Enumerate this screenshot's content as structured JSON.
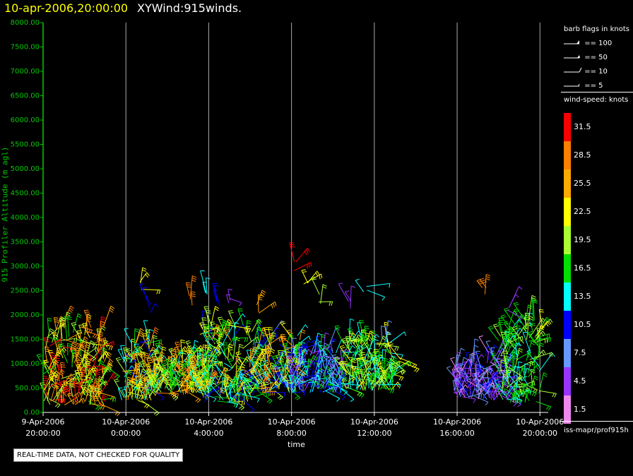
{
  "header": {
    "datetime": "10-apr-2006,20:00:00",
    "name": "XYWind:915winds."
  },
  "chart_data": {
    "type": "scatter",
    "title": "XYWind:915winds.",
    "xlabel": "time",
    "ylabel": "915 Profiler Altitude (m agl)",
    "x_unit": "hours since 9-Apr-2006 20:00",
    "xlim": [
      0,
      24.4
    ],
    "ylim": [
      0,
      8000
    ],
    "grid": true,
    "yticks": [
      {
        "v": 0,
        "label": "0.00"
      },
      {
        "v": 500,
        "label": "500.00"
      },
      {
        "v": 1000,
        "label": "1000.00"
      },
      {
        "v": 1500,
        "label": "1500.00"
      },
      {
        "v": 2000,
        "label": "2000.00"
      },
      {
        "v": 2500,
        "label": "2500.00"
      },
      {
        "v": 3000,
        "label": "3000.00"
      },
      {
        "v": 3500,
        "label": "3500.00"
      },
      {
        "v": 4000,
        "label": "4000.00"
      },
      {
        "v": 4500,
        "label": "4500.00"
      },
      {
        "v": 5000,
        "label": "5000.00"
      },
      {
        "v": 5500,
        "label": "5500.00"
      },
      {
        "v": 6000,
        "label": "6000.00"
      },
      {
        "v": 6500,
        "label": "6500.00"
      },
      {
        "v": 7000,
        "label": "7000.00"
      },
      {
        "v": 7500,
        "label": "7500.00"
      },
      {
        "v": 8000,
        "label": "8000.00"
      }
    ],
    "xticks": [
      {
        "v": 0,
        "line1": "9-Apr-2006",
        "line2": "20:00:00"
      },
      {
        "v": 4,
        "line1": "10-Apr-2006",
        "line2": "0:00:00"
      },
      {
        "v": 8,
        "line1": "10-Apr-2006",
        "line2": "4:00:00"
      },
      {
        "v": 12,
        "line1": "10-Apr-2006",
        "line2": "8:00:00"
      },
      {
        "v": 16,
        "line1": "10-Apr-2006",
        "line2": "12:00:00"
      },
      {
        "v": 20,
        "line1": "10-Apr-2006",
        "line2": "16:00:00"
      },
      {
        "v": 24,
        "line1": "10-Apr-2006",
        "line2": "20:00:00"
      }
    ],
    "clusters": [
      {
        "t0": 0.0,
        "t1": 3.0,
        "h0": 150,
        "h1": 1850,
        "speed_lo": 16.5,
        "speed_hi": 31.5
      },
      {
        "t0": 3.8,
        "t1": 5.4,
        "h0": 250,
        "h1": 1500,
        "speed_lo": 10.5,
        "speed_hi": 28.5
      },
      {
        "t0": 5.2,
        "t1": 8.0,
        "h0": 400,
        "h1": 1100,
        "speed_lo": 13.5,
        "speed_hi": 28.5
      },
      {
        "t0": 7.5,
        "t1": 10.2,
        "h0": 200,
        "h1": 1800,
        "speed_lo": 10.5,
        "speed_hi": 25.5
      },
      {
        "t0": 10.0,
        "t1": 12.4,
        "h0": 400,
        "h1": 1600,
        "speed_lo": 7.5,
        "speed_hi": 28.5
      },
      {
        "t0": 12.0,
        "t1": 14.5,
        "h0": 400,
        "h1": 1300,
        "speed_lo": 4.5,
        "speed_hi": 16.5
      },
      {
        "t0": 14.5,
        "t1": 17.0,
        "h0": 450,
        "h1": 1500,
        "speed_lo": 13.5,
        "speed_hi": 22.5
      },
      {
        "t0": 19.8,
        "t1": 20.8,
        "h0": 300,
        "h1": 1000,
        "speed_lo": 1.5,
        "speed_hi": 10.5
      },
      {
        "t0": 20.8,
        "t1": 22.5,
        "h0": 250,
        "h1": 1250,
        "speed_lo": 1.5,
        "speed_hi": 10.5
      },
      {
        "t0": 22.0,
        "t1": 24.0,
        "h0": 200,
        "h1": 1900,
        "speed_lo": 13.5,
        "speed_hi": 19.5
      }
    ],
    "upper_winds": [
      {
        "t": 4.6,
        "h": 2600,
        "speed": 22.5
      },
      {
        "t": 5.2,
        "h": 2100,
        "speed": 10.5
      },
      {
        "t": 7.2,
        "h": 2300,
        "speed": 28.5
      },
      {
        "t": 7.8,
        "h": 2450,
        "speed": 13.5
      },
      {
        "t": 8.4,
        "h": 2300,
        "speed": 10.5
      },
      {
        "t": 8.9,
        "h": 2250,
        "speed": 4.5
      },
      {
        "t": 10.4,
        "h": 2100,
        "speed": 25.5
      },
      {
        "t": 12.1,
        "h": 3000,
        "speed": 31.5
      },
      {
        "t": 12.7,
        "h": 2700,
        "speed": 22.5
      },
      {
        "t": 13.3,
        "h": 2300,
        "speed": 19.5
      },
      {
        "t": 14.8,
        "h": 2200,
        "speed": 4.5
      },
      {
        "t": 15.5,
        "h": 2500,
        "speed": 13.5
      },
      {
        "t": 16.5,
        "h": 1550,
        "speed": 7.5
      },
      {
        "t": 17.3,
        "h": 1150,
        "speed": 22.5
      },
      {
        "t": 21.3,
        "h": 2450,
        "speed": 28.5
      },
      {
        "t": 22.4,
        "h": 2200,
        "speed": 4.5
      },
      {
        "t": 23.4,
        "h": 1800,
        "speed": 19.5
      },
      {
        "t": 24.0,
        "h": 1600,
        "speed": 22.5
      }
    ]
  },
  "legend": {
    "barb_title": "barb flags in knots",
    "barbs": [
      "== 100",
      "== 50",
      "== 10",
      "== 5"
    ],
    "speed_title": "wind-speed: knots",
    "speed_levels": [
      {
        "label": "31.5",
        "color": "#ff0000"
      },
      {
        "label": "28.5",
        "color": "#ff8000"
      },
      {
        "label": "25.5",
        "color": "#ffaa00"
      },
      {
        "label": "22.5",
        "color": "#ffff00"
      },
      {
        "label": "19.5",
        "color": "#aaff33"
      },
      {
        "label": "16.5",
        "color": "#00e000"
      },
      {
        "label": "13.5",
        "color": "#00ffff"
      },
      {
        "label": "10.5",
        "color": "#0000ff"
      },
      {
        "label": "7.5",
        "color": "#6699ff"
      },
      {
        "label": "4.5",
        "color": "#9933ff"
      },
      {
        "label": "1.5",
        "color": "#ee88ee"
      }
    ],
    "footer": "iss-mapr/prof915h"
  },
  "disclaimer": "REAL-TIME DATA, NOT CHECKED FOR QUALITY",
  "colors": {
    "axis": "#00cc00",
    "grid": "#aaaaaa",
    "title_date": "#ffff00"
  }
}
